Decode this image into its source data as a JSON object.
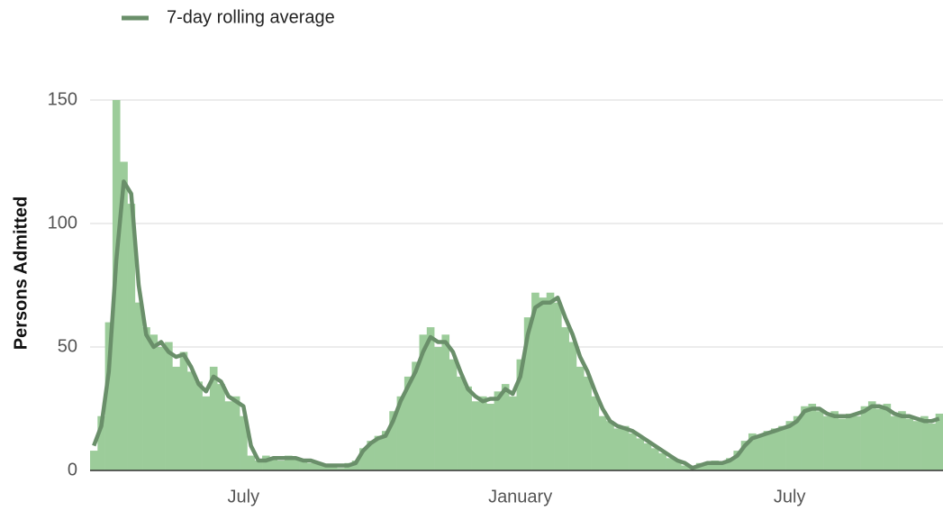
{
  "chart_data": {
    "type": "bar-line",
    "y_label": "Persons Admitted",
    "categories": [
      null,
      null,
      null,
      null,
      null,
      null,
      null,
      null,
      null,
      null,
      null,
      null,
      null,
      null,
      null,
      null,
      null,
      null,
      null,
      null,
      "July",
      null,
      null,
      null,
      null,
      null,
      null,
      null,
      null,
      null,
      null,
      null,
      null,
      null,
      null,
      null,
      null,
      null,
      null,
      null,
      null,
      null,
      null,
      null,
      null,
      null,
      null,
      null,
      null,
      null,
      null,
      null,
      null,
      null,
      null,
      null,
      null,
      "January",
      null,
      null,
      null,
      null,
      null,
      null,
      null,
      null,
      null,
      null,
      null,
      null,
      null,
      null,
      null,
      null,
      null,
      null,
      null,
      null,
      null,
      null,
      null,
      null,
      null,
      null,
      null,
      null,
      null,
      null,
      null,
      null,
      null,
      null,
      null,
      "July",
      null,
      null,
      null,
      null,
      null,
      null,
      null,
      null,
      null,
      null,
      null,
      null,
      null,
      null,
      null,
      null,
      null,
      null,
      null,
      null
    ],
    "series": [
      {
        "type": "bar",
        "color": "#9ccc9a",
        "values": [
          8,
          22,
          60,
          150,
          125,
          108,
          68,
          58,
          55,
          50,
          52,
          42,
          48,
          40,
          36,
          30,
          42,
          35,
          28,
          30,
          22,
          6,
          4,
          6,
          5,
          4,
          6,
          5,
          4,
          3,
          3,
          2,
          2,
          1,
          3,
          4,
          9,
          12,
          14,
          16,
          24,
          30,
          38,
          44,
          55,
          58,
          50,
          55,
          45,
          38,
          34,
          28,
          30,
          27,
          32,
          35,
          30,
          45,
          62,
          72,
          70,
          72,
          68,
          58,
          52,
          42,
          38,
          30,
          22,
          20,
          17,
          18,
          15,
          13,
          11,
          9,
          7,
          5,
          4,
          2,
          1,
          3,
          3,
          4,
          3,
          5,
          8,
          12,
          15,
          14,
          16,
          17,
          18,
          20,
          22,
          26,
          27,
          24,
          22,
          24,
          21,
          23,
          22,
          26,
          28,
          25,
          27,
          22,
          24,
          21,
          20,
          22,
          19,
          23
        ]
      },
      {
        "type": "line",
        "name": "7-day rolling average",
        "color": "#6a8f6a",
        "values": [
          10,
          18,
          40,
          85,
          117,
          112,
          75,
          55,
          50,
          52,
          48,
          46,
          47,
          42,
          35,
          32,
          38,
          36,
          30,
          28,
          26,
          10,
          4,
          4,
          5,
          5,
          5,
          5,
          4,
          4,
          3,
          2,
          2,
          2,
          2,
          3,
          8,
          11,
          13,
          14,
          20,
          28,
          34,
          40,
          48,
          54,
          52,
          52,
          48,
          40,
          33,
          30,
          28,
          29,
          29,
          33,
          31,
          38,
          55,
          66,
          68,
          68,
          70,
          62,
          55,
          46,
          40,
          32,
          25,
          20,
          18,
          17,
          16,
          14,
          12,
          10,
          8,
          6,
          4,
          3,
          1,
          2,
          3,
          3,
          3,
          4,
          6,
          10,
          13,
          14,
          15,
          16,
          17,
          18,
          20,
          24,
          25,
          25,
          23,
          22,
          22,
          22,
          23,
          24,
          26,
          26,
          25,
          23,
          22,
          22,
          21,
          20,
          20,
          21
        ]
      }
    ],
    "ylim": [
      0,
      160
    ],
    "yticks": [
      0,
      50,
      100,
      150
    ],
    "grid": true
  }
}
